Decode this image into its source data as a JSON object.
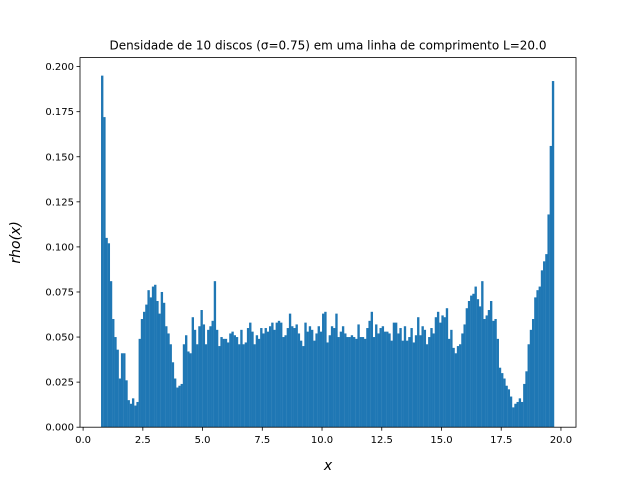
{
  "chart_data": {
    "type": "bar",
    "title": "Densidade de 10 discos (σ=0.75) em uma linha de comprimento L=20.0",
    "xlabel": "x",
    "ylabel": "rho(x)",
    "xlim": [
      -0.13,
      20.63
    ],
    "ylim": [
      0,
      0.205
    ],
    "xticks": [
      0.0,
      2.5,
      5.0,
      7.5,
      10.0,
      12.5,
      15.0,
      17.5,
      20.0
    ],
    "xtick_labels": [
      "0.0",
      "2.5",
      "5.0",
      "7.5",
      "10.0",
      "12.5",
      "15.0",
      "17.5",
      "20.0"
    ],
    "yticks": [
      0.0,
      0.025,
      0.05,
      0.075,
      0.1,
      0.125,
      0.15,
      0.175,
      0.2
    ],
    "ytick_labels": [
      "0.000",
      "0.025",
      "0.050",
      "0.075",
      "0.100",
      "0.125",
      "0.150",
      "0.175",
      "0.200"
    ],
    "grid": false,
    "bar_color": "#1f77b4",
    "x_start": 0.75,
    "bin_width": 0.0925,
    "values": [
      0.195,
      0.172,
      0.105,
      0.102,
      0.081,
      0.06,
      0.05,
      0.043,
      0.027,
      0.041,
      0.041,
      0.026,
      0.015,
      0.013,
      0.016,
      0.012,
      0.014,
      0.049,
      0.06,
      0.064,
      0.068,
      0.076,
      0.072,
      0.078,
      0.079,
      0.07,
      0.063,
      0.075,
      0.069,
      0.056,
      0.052,
      0.046,
      0.036,
      0.027,
      0.022,
      0.023,
      0.024,
      0.046,
      0.051,
      0.042,
      0.041,
      0.061,
      0.054,
      0.046,
      0.056,
      0.065,
      0.057,
      0.046,
      0.054,
      0.056,
      0.059,
      0.081,
      0.054,
      0.045,
      0.05,
      0.049,
      0.049,
      0.047,
      0.052,
      0.053,
      0.051,
      0.05,
      0.046,
      0.054,
      0.046,
      0.047,
      0.055,
      0.058,
      0.053,
      0.046,
      0.051,
      0.049,
      0.055,
      0.052,
      0.055,
      0.053,
      0.056,
      0.058,
      0.054,
      0.058,
      0.059,
      0.058,
      0.05,
      0.051,
      0.055,
      0.063,
      0.056,
      0.055,
      0.057,
      0.052,
      0.048,
      0.045,
      0.058,
      0.053,
      0.056,
      0.054,
      0.048,
      0.052,
      0.056,
      0.053,
      0.063,
      0.064,
      0.047,
      0.051,
      0.056,
      0.055,
      0.063,
      0.05,
      0.053,
      0.056,
      0.052,
      0.05,
      0.05,
      0.051,
      0.05,
      0.049,
      0.057,
      0.05,
      0.05,
      0.049,
      0.055,
      0.059,
      0.064,
      0.05,
      0.057,
      0.052,
      0.055,
      0.056,
      0.053,
      0.053,
      0.052,
      0.048,
      0.058,
      0.058,
      0.052,
      0.055,
      0.048,
      0.056,
      0.048,
      0.05,
      0.055,
      0.047,
      0.051,
      0.061,
      0.051,
      0.056,
      0.054,
      0.046,
      0.05,
      0.055,
      0.052,
      0.061,
      0.064,
      0.058,
      0.062,
      0.061,
      0.066,
      0.049,
      0.054,
      0.044,
      0.041,
      0.045,
      0.046,
      0.052,
      0.057,
      0.066,
      0.07,
      0.073,
      0.074,
      0.078,
      0.071,
      0.067,
      0.081,
      0.06,
      0.062,
      0.065,
      0.07,
      0.059,
      0.06,
      0.049,
      0.033,
      0.03,
      0.027,
      0.023,
      0.021,
      0.017,
      0.011,
      0.013,
      0.014,
      0.016,
      0.014,
      0.024,
      0.031,
      0.046,
      0.054,
      0.06,
      0.072,
      0.076,
      0.078,
      0.087,
      0.092,
      0.096,
      0.118,
      0.156,
      0.192
    ]
  }
}
